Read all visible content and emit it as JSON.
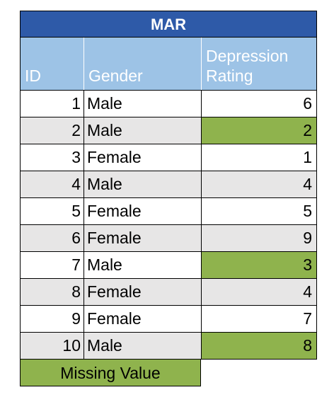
{
  "title": "MAR",
  "headers": {
    "id": "ID",
    "gender": "Gender",
    "rating_line1": "Depression",
    "rating_line2": "Rating"
  },
  "rows": [
    {
      "id": "1",
      "gender": "Male",
      "rating": "6",
      "missing": false
    },
    {
      "id": "2",
      "gender": "Male",
      "rating": "2",
      "missing": true
    },
    {
      "id": "3",
      "gender": "Female",
      "rating": "1",
      "missing": false
    },
    {
      "id": "4",
      "gender": "Male",
      "rating": "4",
      "missing": false
    },
    {
      "id": "5",
      "gender": "Female",
      "rating": "5",
      "missing": false
    },
    {
      "id": "6",
      "gender": "Female",
      "rating": "9",
      "missing": false
    },
    {
      "id": "7",
      "gender": "Male",
      "rating": "3",
      "missing": true
    },
    {
      "id": "8",
      "gender": "Female",
      "rating": "4",
      "missing": false
    },
    {
      "id": "9",
      "gender": "Female",
      "rating": "7",
      "missing": false
    },
    {
      "id": "10",
      "gender": "Male",
      "rating": "8",
      "missing": true
    }
  ],
  "legend": {
    "label": "Missing Value"
  },
  "colors": {
    "title_bg": "#2e5aa8",
    "header_bg": "#9dc3e6",
    "missing": "#8fb34d",
    "alt_row": "#e7e6e6"
  }
}
